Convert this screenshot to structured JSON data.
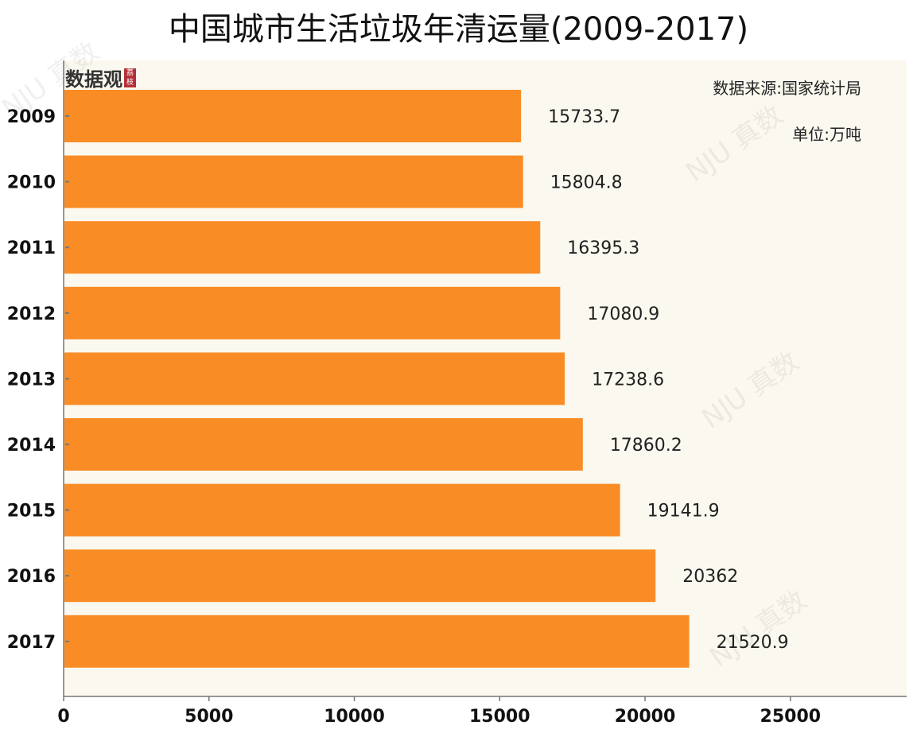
{
  "title": "中国城市生活垃圾年清运量(2009-2017)",
  "logo": {
    "text": "数据观",
    "badge": "荔枝"
  },
  "source": "数据来源:国家统计局",
  "unit": "单位:万吨",
  "watermark": "NJU 真数",
  "colors": {
    "bar": "#f98c25",
    "plot_bg": "#fbf8ef",
    "axis": "#777777"
  },
  "chart_data": {
    "type": "bar",
    "orientation": "horizontal",
    "title": "中国城市生活垃圾年清运量(2009-2017)",
    "xlabel": "",
    "ylabel": "",
    "categories": [
      "2009",
      "2010",
      "2011",
      "2012",
      "2013",
      "2014",
      "2015",
      "2016",
      "2017"
    ],
    "values": [
      15733.7,
      15804.8,
      16395.3,
      17080.9,
      17238.6,
      17860.2,
      19141.9,
      20362,
      21520.9
    ],
    "value_labels": [
      "15733.7",
      "15804.8",
      "16395.3",
      "17080.9",
      "17238.6",
      "17860.2",
      "19141.9",
      "20362",
      "21520.9"
    ],
    "xlim": [
      0,
      29000
    ],
    "xticks": [
      0,
      5000,
      10000,
      15000,
      20000,
      25000
    ],
    "xtick_labels": [
      "0",
      "5000",
      "10000",
      "15000",
      "20000",
      "25000"
    ],
    "grid": false,
    "legend": "none"
  }
}
